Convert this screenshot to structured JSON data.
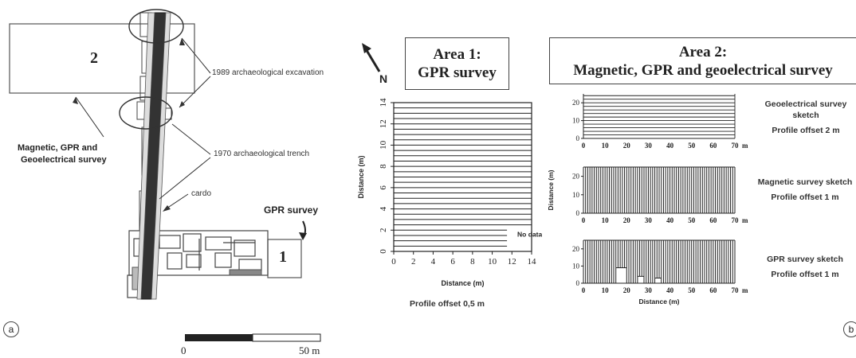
{
  "panel_a": {
    "letter": "a",
    "area2_number": "2",
    "area1_number": "1",
    "label_excavation": "1989 archaeological excavation",
    "label_trench": "1970 archaeological trench",
    "label_cardo": "cardo",
    "label_gpr": "GPR survey",
    "label_magnetic_line1": "Magnetic, GPR and",
    "label_magnetic_line2": "Geoelectrical survey",
    "scale_start": "0",
    "scale_end": "50 m"
  },
  "panel_b": {
    "letter": "b",
    "north": "N",
    "area1_title_line1": "Area 1:",
    "area1_title_line2": "GPR survey",
    "area2_title_line1": "Area 2:",
    "area2_title_line2": "Magnetic, GPR and geoelectrical survey",
    "area1_ylabel": "Distance (m)",
    "area1_xlabel": "Distance (m)",
    "area1_no_data": "No data",
    "area1_offset": "Profile offset 0,5 m",
    "sketch1_line1": "Geoelectrical survey",
    "sketch1_line2": "sketch",
    "sketch1_offset": "Profile offset 2 m",
    "sketch2_line1": "Magnetic survey sketch",
    "sketch2_offset": "Profile offset 1 m",
    "sketch3_line1": "GPR survey sketch",
    "sketch3_offset": "Profile offset 1 m",
    "sketch2_ylabel": "Distance (m)",
    "sketch3_xlabel": "Distance (m)"
  },
  "chart_data": [
    {
      "type": "line",
      "name": "Area 1 GPR profiles",
      "xlabel": "Distance (m)",
      "ylabel": "Distance (m)",
      "xlim": [
        0,
        14
      ],
      "ylim": [
        0,
        14
      ],
      "x_ticks": [
        "0",
        "2",
        "4",
        "6",
        "8",
        "10",
        "12",
        "14"
      ],
      "y_ticks": [
        "0",
        "2",
        "4",
        "6",
        "8",
        "10",
        "12",
        "14"
      ],
      "profile_spacing": 0.5,
      "short_profiles_y": [
        0.5,
        1,
        1.5,
        2
      ],
      "short_profiles_xmax": 11.5,
      "annotation": "No data"
    },
    {
      "type": "line",
      "name": "Geoelectrical survey sketch",
      "xlim": [
        0,
        70
      ],
      "ylim": [
        0,
        25
      ],
      "x_ticks": [
        "0",
        "10",
        "20",
        "30",
        "40",
        "50",
        "60",
        "70"
      ],
      "x_unit": "m",
      "y_ticks": [
        "0",
        "10",
        "20"
      ],
      "orientation": "horizontal",
      "profile_spacing": 2
    },
    {
      "type": "line",
      "name": "Magnetic survey sketch",
      "xlim": [
        0,
        70
      ],
      "ylim": [
        0,
        25
      ],
      "x_ticks": [
        "0",
        "10",
        "20",
        "30",
        "40",
        "50",
        "60",
        "70"
      ],
      "x_unit": "m",
      "y_ticks": [
        "0",
        "10",
        "20"
      ],
      "ylabel": "Distance (m)",
      "orientation": "vertical",
      "profile_spacing": 1
    },
    {
      "type": "line",
      "name": "GPR survey sketch",
      "xlim": [
        0,
        70
      ],
      "ylim": [
        0,
        25
      ],
      "x_ticks": [
        "0",
        "10",
        "20",
        "30",
        "40",
        "50",
        "60",
        "70"
      ],
      "x_unit": "m",
      "y_ticks": [
        "0",
        "10",
        "20"
      ],
      "xlabel": "Distance (m)",
      "orientation": "vertical",
      "profile_spacing": 1,
      "gaps": [
        [
          15,
          20,
          9
        ],
        [
          25,
          28,
          4
        ],
        [
          33,
          36,
          3
        ]
      ]
    }
  ]
}
